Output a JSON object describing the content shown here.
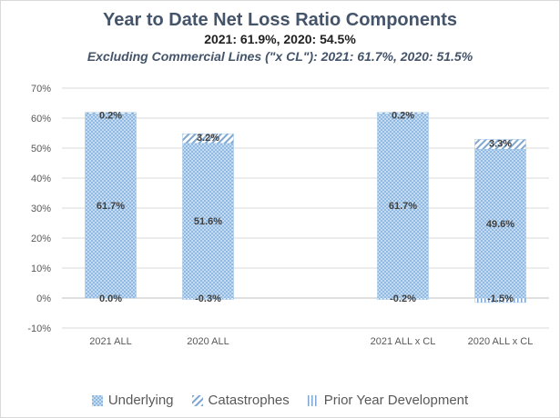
{
  "chart_data": {
    "type": "bar",
    "stacked": true,
    "title": "Year to Date Net Loss Ratio Components",
    "subtitle": "2021: 61.9%, 2020: 54.5%",
    "subtitle2": "Excluding Commercial Lines (\"x CL\"): 2021: 61.7%, 2020: 51.5%",
    "categories": [
      "2021 ALL",
      "2020 ALL",
      "",
      "2021 ALL x CL",
      "2020 ALL x CL"
    ],
    "series": [
      {
        "name": "Underlying",
        "values": [
          61.7,
          51.6,
          null,
          61.7,
          49.6
        ],
        "labels": [
          "61.7%",
          "51.6%",
          "",
          "61.7%",
          "49.6%"
        ],
        "pattern": "dots"
      },
      {
        "name": "Catastrophes",
        "values": [
          0.2,
          3.2,
          null,
          0.2,
          3.3
        ],
        "labels": [
          "0.2%",
          "3.2%",
          "",
          "0.2%",
          "3.3%"
        ],
        "pattern": "diag"
      },
      {
        "name": "Prior Year Development",
        "values": [
          0.0,
          -0.3,
          null,
          -0.2,
          -1.5
        ],
        "labels": [
          "0.0%",
          "-0.3%",
          "",
          "-0.2%",
          "-1.5%"
        ],
        "pattern": "vert"
      }
    ],
    "ylim": [
      -10,
      70
    ],
    "yticks": [
      "-10%",
      "0%",
      "10%",
      "20%",
      "30%",
      "40%",
      "50%",
      "60%",
      "70%"
    ],
    "ytick_values": [
      -10,
      0,
      10,
      20,
      30,
      40,
      50,
      60,
      70
    ],
    "grid": true,
    "legend": "bottom",
    "colors": {
      "bar": "#9dc3e6",
      "bar_dark": "#5b9bd5",
      "grid": "#d9d9d9",
      "axis": "#bfbfbf"
    }
  }
}
